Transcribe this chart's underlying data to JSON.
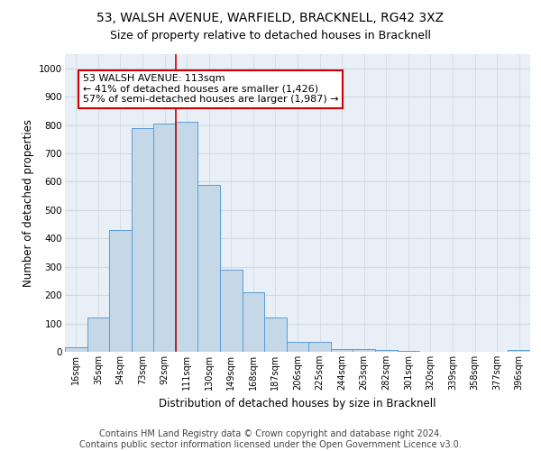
{
  "title1": "53, WALSH AVENUE, WARFIELD, BRACKNELL, RG42 3XZ",
  "title2": "Size of property relative to detached houses in Bracknell",
  "xlabel": "Distribution of detached houses by size in Bracknell",
  "ylabel": "Number of detached properties",
  "footer1": "Contains HM Land Registry data © Crown copyright and database right 2024.",
  "footer2": "Contains public sector information licensed under the Open Government Licence v3.0.",
  "categories": [
    "16sqm",
    "35sqm",
    "54sqm",
    "73sqm",
    "92sqm",
    "111sqm",
    "130sqm",
    "149sqm",
    "168sqm",
    "187sqm",
    "206sqm",
    "225sqm",
    "244sqm",
    "263sqm",
    "282sqm",
    "301sqm",
    "320sqm",
    "339sqm",
    "358sqm",
    "377sqm",
    "396sqm"
  ],
  "values": [
    15,
    120,
    430,
    790,
    805,
    810,
    590,
    290,
    210,
    120,
    35,
    35,
    10,
    8,
    5,
    3,
    1,
    1,
    1,
    1,
    5
  ],
  "bar_color": "#c5d8e8",
  "bar_edge_color": "#5b9bd5",
  "highlight_index": 5,
  "highlight_line_color": "#cc0000",
  "annotation_text": "53 WALSH AVENUE: 113sqm\n← 41% of detached houses are smaller (1,426)\n57% of semi-detached houses are larger (1,987) →",
  "annotation_box_color": "#ffffff",
  "annotation_box_edge_color": "#cc0000",
  "ylim": [
    0,
    1050
  ],
  "yticks": [
    0,
    100,
    200,
    300,
    400,
    500,
    600,
    700,
    800,
    900,
    1000
  ],
  "grid_color": "#d0d8e0",
  "bg_color": "#e8eff7",
  "fig_bg_color": "#ffffff",
  "title1_fontsize": 10,
  "title2_fontsize": 9,
  "xlabel_fontsize": 8.5,
  "ylabel_fontsize": 8.5,
  "footer_fontsize": 7,
  "annot_fontsize": 8
}
